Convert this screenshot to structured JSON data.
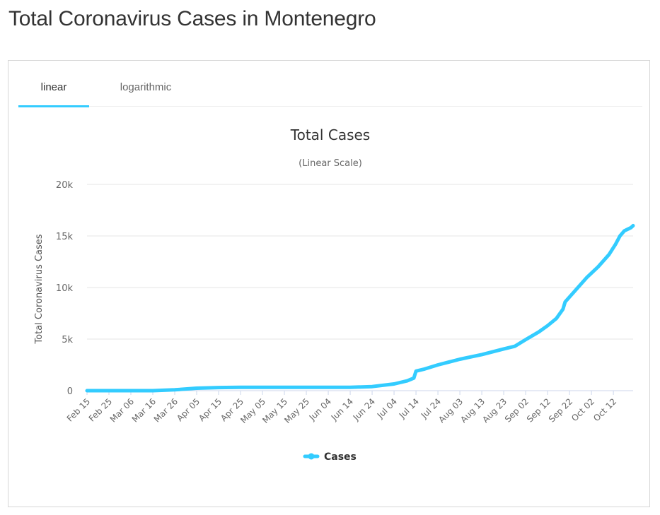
{
  "page": {
    "title": "Total Coronavirus Cases in Montenegro"
  },
  "tabs": {
    "linear_label": "linear",
    "log_label": "logarithmic",
    "active": "linear"
  },
  "colors": {
    "series": "#33ccff",
    "grid": "#e6e6e6",
    "axis": "#ccd6eb"
  },
  "chart_data": {
    "type": "line",
    "title": "Total Cases",
    "subtitle": "(Linear Scale)",
    "ylabel": "Total Coronavirus Cases",
    "xlabel": "",
    "ylim": [
      0,
      20000
    ],
    "yticks": [
      0,
      5000,
      10000,
      15000,
      20000
    ],
    "ytick_labels": [
      "0",
      "5k",
      "10k",
      "15k",
      "20k"
    ],
    "xtick_labels": [
      "Feb 15",
      "Feb 25",
      "Mar 06",
      "Mar 16",
      "Mar 26",
      "Apr 05",
      "Apr 15",
      "Apr 25",
      "May 05",
      "May 15",
      "May 25",
      "Jun 04",
      "Jun 14",
      "Jun 24",
      "Jul 04",
      "Jul 14",
      "Jul 24",
      "Aug 03",
      "Aug 13",
      "Aug 23",
      "Sep 02",
      "Sep 12",
      "Sep 22",
      "Oct 02",
      "Oct 12"
    ],
    "x_start": "Feb 15",
    "x_end": "Oct 21",
    "grid": true,
    "legend": "bottom-center",
    "series": [
      {
        "name": "Cases",
        "points": [
          [
            "Feb 15",
            0
          ],
          [
            "Mar 16",
            0
          ],
          [
            "Mar 26",
            80
          ],
          [
            "Apr 05",
            240
          ],
          [
            "Apr 15",
            300
          ],
          [
            "Apr 25",
            320
          ],
          [
            "May 15",
            324
          ],
          [
            "Jun 04",
            324
          ],
          [
            "Jun 14",
            324
          ],
          [
            "Jun 24",
            400
          ],
          [
            "Jul 04",
            650
          ],
          [
            "Jul 10",
            950
          ],
          [
            "Jul 13",
            1220
          ],
          [
            "Jul 14",
            1900
          ],
          [
            "Jul 18",
            2100
          ],
          [
            "Jul 24",
            2500
          ],
          [
            "Aug 03",
            3050
          ],
          [
            "Aug 13",
            3500
          ],
          [
            "Aug 23",
            4050
          ],
          [
            "Aug 28",
            4300
          ],
          [
            "Sep 02",
            4950
          ],
          [
            "Sep 08",
            5700
          ],
          [
            "Sep 12",
            6300
          ],
          [
            "Sep 16",
            7000
          ],
          [
            "Sep 19",
            7900
          ],
          [
            "Sep 20",
            8600
          ],
          [
            "Sep 25",
            9800
          ],
          [
            "Sep 30",
            11000
          ],
          [
            "Oct 05",
            12000
          ],
          [
            "Oct 10",
            13200
          ],
          [
            "Oct 13",
            14200
          ],
          [
            "Oct 15",
            15000
          ],
          [
            "Oct 17",
            15500
          ],
          [
            "Oct 20",
            15800
          ],
          [
            "Oct 21",
            16000
          ]
        ]
      }
    ]
  }
}
